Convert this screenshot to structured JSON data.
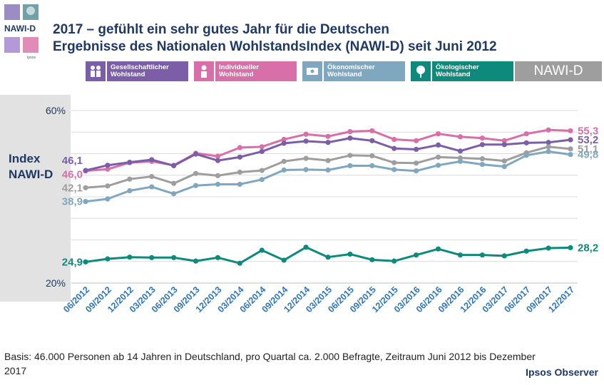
{
  "logo": {
    "text": "NAWI-D",
    "sub": "Ipsos"
  },
  "title": {
    "line1": "2017 – gefühlt ein sehr gutes Jahr für die Deutschen",
    "line2": "Ergebnisse des Nationalen WohlstandsIndex (NAWI-D) seit Juni 2012"
  },
  "legend": [
    {
      "line1": "Gesellschaftlicher",
      "line2": "Wohlstand",
      "color": "#7b5ea7",
      "icon": "people-icon"
    },
    {
      "line1": "Individueller",
      "line2": "Wohlstand",
      "color": "#d86fa8",
      "icon": "person-icon"
    },
    {
      "line1": "Ökonomischer",
      "line2": "Wohlstand",
      "color": "#7fa8c0",
      "icon": "money-icon"
    },
    {
      "line1": "Ökologischer",
      "line2": "Wohlstand",
      "color": "#0e8a7c",
      "icon": "tree-icon"
    }
  ],
  "legend_nawi": {
    "label": "NAWI-D",
    "color": "#9e9e9e"
  },
  "axis_title": {
    "line1": "Index",
    "line2": "NAWI-D"
  },
  "footer": {
    "basis": "Basis: 46.000 Personen ab 14 Jahren in Deutschland, pro Quartal ca. 2.000 Befragte, Zeitraum Juni 2012 bis Dezember 2017",
    "brand": "Ipsos Observer"
  },
  "chart_data": {
    "type": "line",
    "title": "Ergebnisse des Nationalen WohlstandsIndex (NAWI-D) seit Juni 2012",
    "ylabel": "Index NAWI-D",
    "ylim": [
      20,
      60
    ],
    "yticks": [
      {
        "value": 60,
        "label": "60%"
      },
      {
        "value": 20,
        "label": "20%"
      }
    ],
    "categories": [
      "06/2012",
      "09/2012",
      "12/2012",
      "03/2013",
      "06/2013",
      "09/2013",
      "12/2013",
      "03/2014",
      "06/2014",
      "09/2014",
      "12/2014",
      "03/2015",
      "06/2015",
      "09/2015",
      "12/2015",
      "03/2016",
      "06/2016",
      "09/2016",
      "12/2016",
      "03/2017",
      "06/2017",
      "09/2017",
      "12/2017"
    ],
    "series": [
      {
        "name": "Individueller Wohlstand",
        "color": "#d86fa8",
        "start_label": "46,0",
        "end_label": "55,3",
        "values": [
          46.0,
          46.4,
          47.9,
          48.2,
          47.3,
          50.1,
          49.4,
          51.4,
          51.6,
          53.3,
          54.5,
          54.0,
          55.1,
          55.3,
          53.3,
          53.0,
          54.6,
          53.9,
          53.6,
          53.0,
          54.6,
          55.5,
          55.3
        ]
      },
      {
        "name": "Gesellschaftlicher Wohlstand",
        "color": "#7b5ea7",
        "start_label": "46,1",
        "end_label": "53,2",
        "values": [
          46.1,
          47.3,
          48.0,
          48.6,
          47.2,
          49.9,
          48.4,
          49.2,
          50.5,
          52.4,
          52.9,
          52.6,
          53.6,
          53.0,
          51.2,
          51.0,
          52.0,
          50.6,
          52.1,
          52.1,
          52.5,
          52.6,
          53.2
        ]
      },
      {
        "name": "NAWI-D",
        "color": "#9e9e9e",
        "start_label": "42,1",
        "end_label": "51,1",
        "values": [
          42.1,
          42.5,
          44.1,
          44.7,
          43.1,
          45.4,
          44.9,
          45.7,
          46.1,
          48.2,
          48.9,
          48.4,
          49.6,
          49.5,
          47.9,
          47.8,
          49.2,
          49.0,
          48.8,
          48.3,
          50.2,
          51.6,
          51.1
        ]
      },
      {
        "name": "Ökonomischer Wohlstand",
        "color": "#7fa8c0",
        "start_label": "38,9",
        "end_label": "49,8",
        "values": [
          38.9,
          39.5,
          41.4,
          42.3,
          40.7,
          42.6,
          42.9,
          42.9,
          44.0,
          46.2,
          46.3,
          46.2,
          47.2,
          47.2,
          46.3,
          46.0,
          47.3,
          48.2,
          47.5,
          47.0,
          49.6,
          50.5,
          49.8
        ]
      },
      {
        "name": "Ökologischer Wohlstand",
        "color": "#0e8a7c",
        "start_label": "24,9",
        "end_label": "28,2",
        "values": [
          24.9,
          25.6,
          26.0,
          25.9,
          25.9,
          25.1,
          25.9,
          24.6,
          27.6,
          25.3,
          28.3,
          26.0,
          26.7,
          25.4,
          25.1,
          26.5,
          27.9,
          26.5,
          26.5,
          26.3,
          27.4,
          28.1,
          28.2
        ]
      }
    ]
  }
}
